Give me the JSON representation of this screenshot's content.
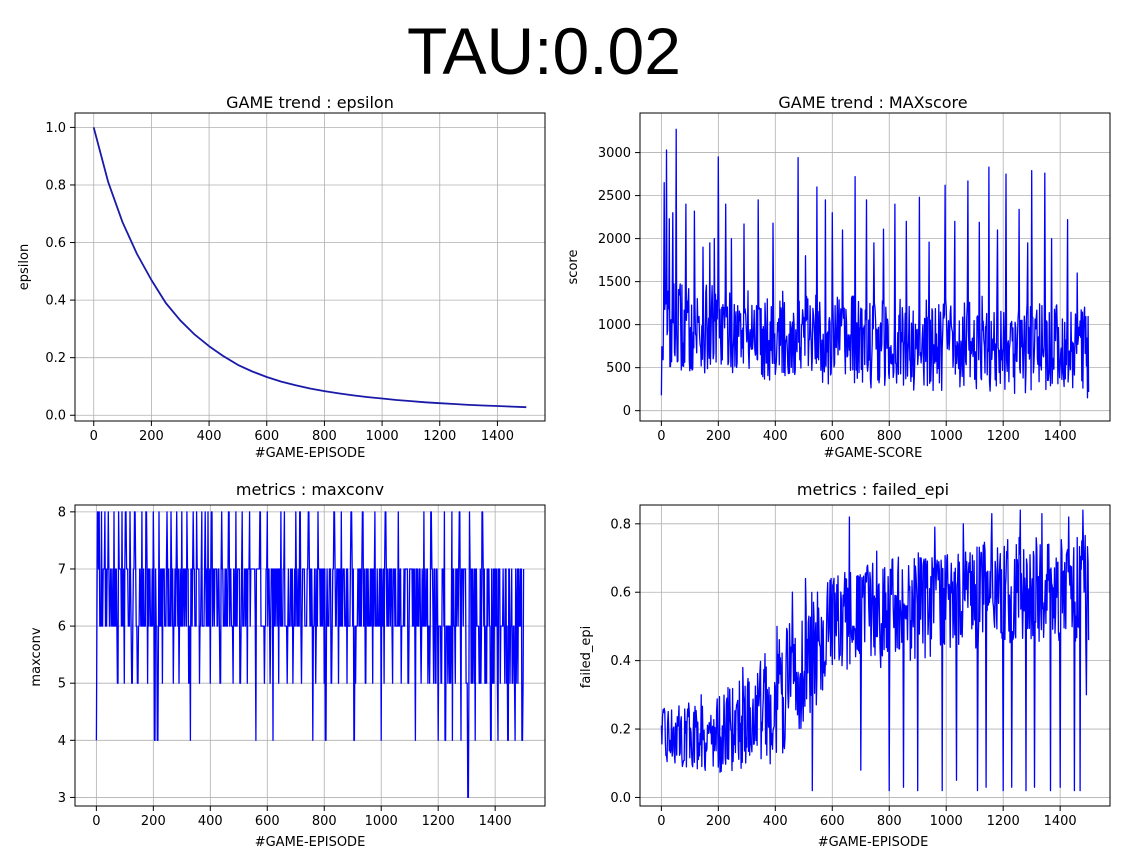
{
  "suptitle": "TAU:0.02",
  "chart_data": [
    {
      "type": "line",
      "title": "GAME trend : epsilon",
      "xlabel": "#GAME-EPISODE",
      "ylabel": "epsilon",
      "xlim": [
        -65,
        1565
      ],
      "ylim": [
        -0.02,
        1.05
      ],
      "xticks": [
        0,
        200,
        400,
        600,
        800,
        1000,
        1200,
        1400
      ],
      "yticks": [
        0.0,
        0.2,
        0.4,
        0.6,
        0.8,
        1.0
      ],
      "ytick_labels": [
        "0.0",
        "0.2",
        "0.4",
        "0.6",
        "0.8",
        "1.0"
      ],
      "grid": true,
      "color": "#1a1aa8",
      "series": [
        {
          "x": [
            0,
            50,
            100,
            150,
            200,
            250,
            300,
            350,
            400,
            450,
            500,
            550,
            600,
            650,
            700,
            750,
            800,
            850,
            900,
            950,
            1000,
            1050,
            1100,
            1150,
            1200,
            1250,
            1300,
            1350,
            1400,
            1450,
            1500
          ],
          "y": [
            1.0,
            0.81,
            0.67,
            0.56,
            0.47,
            0.39,
            0.33,
            0.28,
            0.24,
            0.205,
            0.175,
            0.152,
            0.133,
            0.117,
            0.104,
            0.093,
            0.084,
            0.076,
            0.069,
            0.063,
            0.058,
            0.053,
            0.049,
            0.045,
            0.042,
            0.039,
            0.036,
            0.034,
            0.032,
            0.03,
            0.028
          ]
        }
      ]
    },
    {
      "type": "line",
      "title": "GAME trend : MAXscore",
      "xlabel": "#GAME-SCORE",
      "ylabel": "score",
      "xlim": [
        -75,
        1575
      ],
      "ylim": [
        -120,
        3460
      ],
      "xticks": [
        0,
        200,
        400,
        600,
        800,
        1000,
        1200,
        1400
      ],
      "yticks": [
        0,
        500,
        1000,
        1500,
        2000,
        2500,
        3000
      ],
      "grid": true,
      "color": "#0000ff",
      "noisy_series": {
        "x_start": 0,
        "x_end": 1500,
        "step": 2,
        "segments": [
          {
            "x": 0,
            "low": 450,
            "high": 1500
          },
          {
            "x": 400,
            "low": 350,
            "high": 1400
          },
          {
            "x": 800,
            "low": 250,
            "high": 1300
          },
          {
            "x": 1200,
            "low": 200,
            "high": 1350
          },
          {
            "x": 1500,
            "low": 200,
            "high": 1250
          }
        ],
        "spikes": [
          {
            "x": 0,
            "y": 180
          },
          {
            "x": 10,
            "y": 2650
          },
          {
            "x": 18,
            "y": 3030
          },
          {
            "x": 28,
            "y": 2230
          },
          {
            "x": 40,
            "y": 2300
          },
          {
            "x": 52,
            "y": 3270
          },
          {
            "x": 85,
            "y": 2400
          },
          {
            "x": 115,
            "y": 2320
          },
          {
            "x": 145,
            "y": 1900
          },
          {
            "x": 170,
            "y": 1950
          },
          {
            "x": 185,
            "y": 2000
          },
          {
            "x": 200,
            "y": 2950
          },
          {
            "x": 225,
            "y": 2400
          },
          {
            "x": 245,
            "y": 2000
          },
          {
            "x": 290,
            "y": 2170
          },
          {
            "x": 340,
            "y": 2450
          },
          {
            "x": 392,
            "y": 2180
          },
          {
            "x": 480,
            "y": 2940
          },
          {
            "x": 505,
            "y": 1800
          },
          {
            "x": 545,
            "y": 2600
          },
          {
            "x": 575,
            "y": 2450
          },
          {
            "x": 600,
            "y": 2300
          },
          {
            "x": 635,
            "y": 2100
          },
          {
            "x": 680,
            "y": 2720
          },
          {
            "x": 720,
            "y": 2450
          },
          {
            "x": 745,
            "y": 1950
          },
          {
            "x": 780,
            "y": 2110
          },
          {
            "x": 820,
            "y": 2400
          },
          {
            "x": 860,
            "y": 2200
          },
          {
            "x": 905,
            "y": 2480
          },
          {
            "x": 940,
            "y": 1960
          },
          {
            "x": 995,
            "y": 2620
          },
          {
            "x": 1030,
            "y": 2200
          },
          {
            "x": 1075,
            "y": 2670
          },
          {
            "x": 1115,
            "y": 2190
          },
          {
            "x": 1150,
            "y": 2830
          },
          {
            "x": 1180,
            "y": 2100
          },
          {
            "x": 1210,
            "y": 2750
          },
          {
            "x": 1255,
            "y": 2340
          },
          {
            "x": 1285,
            "y": 1950
          },
          {
            "x": 1300,
            "y": 2790
          },
          {
            "x": 1345,
            "y": 2760
          },
          {
            "x": 1370,
            "y": 2000
          },
          {
            "x": 1425,
            "y": 2220
          },
          {
            "x": 1460,
            "y": 1600
          },
          {
            "x": 1495,
            "y": 150
          }
        ]
      }
    },
    {
      "type": "line",
      "title": "metrics : maxconv",
      "xlabel": "#GAME-EPISODE",
      "ylabel": "maxconv",
      "xlim": [
        -75,
        1575
      ],
      "ylim": [
        2.85,
        8.12
      ],
      "xticks": [
        0,
        200,
        400,
        600,
        800,
        1000,
        1200,
        1400
      ],
      "yticks": [
        3,
        4,
        5,
        6,
        7,
        8
      ],
      "grid": true,
      "color": "#0000ff",
      "discrete_series": {
        "x_start": 0,
        "x_end": 1500,
        "step": 2,
        "band": [
          6,
          7
        ],
        "spikes_to_8": [
          5,
          10,
          18,
          30,
          42,
          62,
          78,
          90,
          103,
          118,
          135,
          160,
          175,
          200,
          220,
          248,
          262,
          282,
          300,
          318,
          340,
          352,
          370,
          382,
          392,
          405,
          440,
          465,
          490,
          512,
          538,
          560,
          575,
          600,
          620,
          648,
          660,
          700,
          715,
          745,
          778,
          805,
          835,
          860,
          895,
          935,
          978,
          1015,
          1060,
          1150,
          1175,
          1222,
          1248,
          1275,
          1310,
          1330,
          1355
        ],
        "dips_to_5": [
          75,
          98,
          125,
          145,
          180,
          205,
          232,
          270,
          290,
          325,
          362,
          400,
          435,
          480,
          505,
          530,
          560,
          590,
          610,
          640,
          670,
          690,
          720,
          745,
          770,
          800,
          825,
          850,
          880,
          910,
          945,
          970,
          1010,
          1040,
          1070,
          1095,
          1120,
          1150,
          1170,
          1190,
          1210,
          1240,
          1260,
          1280,
          1300,
          1320,
          1345,
          1365,
          1390,
          1410,
          1440,
          1460,
          1480,
          1495
        ],
        "dips_to_4": [
          0,
          205,
          215,
          330,
          560,
          620,
          760,
          805,
          905,
          1000,
          1120,
          1200,
          1225,
          1250,
          1280,
          1330,
          1385,
          1410,
          1445,
          1470,
          1495
        ],
        "low_run": {
          "from": 1140,
          "to": 1500,
          "low": 5,
          "high": 7
        },
        "minimum": {
          "x": 1305,
          "y": 3
        }
      }
    },
    {
      "type": "line",
      "title": "metrics : failed_epi",
      "xlabel": "#GAME-EPISODE",
      "ylabel": "failed_epi",
      "xlim": [
        -75,
        1575
      ],
      "ylim": [
        -0.025,
        0.855
      ],
      "xticks": [
        0,
        200,
        400,
        600,
        800,
        1000,
        1200,
        1400
      ],
      "yticks": [
        0.0,
        0.2,
        0.4,
        0.6,
        0.8
      ],
      "ytick_labels": [
        "0.0",
        "0.2",
        "0.4",
        "0.6",
        "0.8"
      ],
      "grid": true,
      "color": "#0000ff",
      "noisy_series": {
        "x_start": 0,
        "x_end": 1500,
        "step": 2,
        "segments": [
          {
            "x": 0,
            "low": 0.1,
            "high": 0.26
          },
          {
            "x": 200,
            "low": 0.07,
            "high": 0.3
          },
          {
            "x": 400,
            "low": 0.1,
            "high": 0.45
          },
          {
            "x": 500,
            "low": 0.2,
            "high": 0.58
          },
          {
            "x": 600,
            "low": 0.35,
            "high": 0.65
          },
          {
            "x": 800,
            "low": 0.38,
            "high": 0.7
          },
          {
            "x": 1000,
            "low": 0.42,
            "high": 0.73
          },
          {
            "x": 1200,
            "low": 0.45,
            "high": 0.76
          },
          {
            "x": 1500,
            "low": 0.45,
            "high": 0.77
          }
        ],
        "spikes": [
          {
            "x": 0,
            "y": 0.21
          },
          {
            "x": 140,
            "y": 0.3
          },
          {
            "x": 285,
            "y": 0.38
          },
          {
            "x": 405,
            "y": 0.5
          },
          {
            "x": 460,
            "y": 0.6
          },
          {
            "x": 505,
            "y": 0.64
          },
          {
            "x": 530,
            "y": 0.02
          },
          {
            "x": 595,
            "y": 0.64
          },
          {
            "x": 660,
            "y": 0.82
          },
          {
            "x": 700,
            "y": 0.08
          },
          {
            "x": 755,
            "y": 0.72
          },
          {
            "x": 800,
            "y": 0.02
          },
          {
            "x": 850,
            "y": 0.03
          },
          {
            "x": 900,
            "y": 0.02
          },
          {
            "x": 960,
            "y": 0.79
          },
          {
            "x": 985,
            "y": 0.02
          },
          {
            "x": 1035,
            "y": 0.05
          },
          {
            "x": 1060,
            "y": 0.8
          },
          {
            "x": 1110,
            "y": 0.02
          },
          {
            "x": 1140,
            "y": 0.03
          },
          {
            "x": 1160,
            "y": 0.83
          },
          {
            "x": 1200,
            "y": 0.02
          },
          {
            "x": 1230,
            "y": 0.03
          },
          {
            "x": 1260,
            "y": 0.84
          },
          {
            "x": 1280,
            "y": 0.02
          },
          {
            "x": 1310,
            "y": 0.03
          },
          {
            "x": 1335,
            "y": 0.83
          },
          {
            "x": 1365,
            "y": 0.02
          },
          {
            "x": 1400,
            "y": 0.03
          },
          {
            "x": 1430,
            "y": 0.82
          },
          {
            "x": 1450,
            "y": 0.02
          },
          {
            "x": 1470,
            "y": 0.02
          },
          {
            "x": 1480,
            "y": 0.84
          },
          {
            "x": 1492,
            "y": 0.3
          },
          {
            "x": 1500,
            "y": 0.46
          }
        ]
      }
    }
  ]
}
